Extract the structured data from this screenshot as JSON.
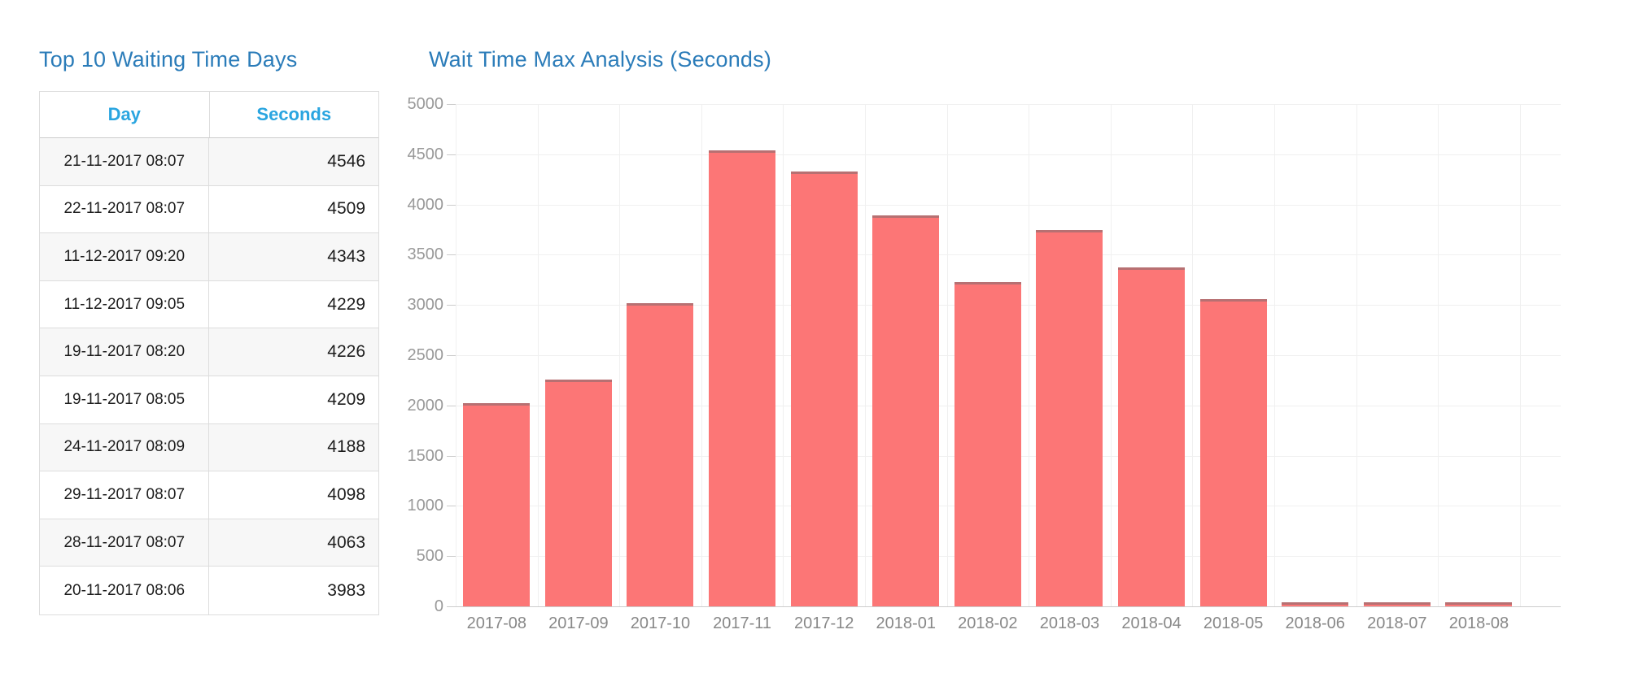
{
  "left_panel": {
    "title": "Top 10 Waiting Time Days",
    "table": {
      "columns": [
        "Day",
        "Seconds"
      ],
      "rows": [
        {
          "day": "21-11-2017 08:07",
          "seconds": "4546"
        },
        {
          "day": "22-11-2017 08:07",
          "seconds": "4509"
        },
        {
          "day": "11-12-2017 09:20",
          "seconds": "4343"
        },
        {
          "day": "11-12-2017 09:05",
          "seconds": "4229"
        },
        {
          "day": "19-11-2017 08:20",
          "seconds": "4226"
        },
        {
          "day": "19-11-2017 08:05",
          "seconds": "4209"
        },
        {
          "day": "24-11-2017 08:09",
          "seconds": "4188"
        },
        {
          "day": "29-11-2017 08:07",
          "seconds": "4098"
        },
        {
          "day": "28-11-2017 08:07",
          "seconds": "4063"
        },
        {
          "day": "20-11-2017 08:06",
          "seconds": "3983"
        }
      ]
    }
  },
  "chart_panel": {
    "title": "Wait Time Max Analysis (Seconds)"
  },
  "chart_data": {
    "type": "bar",
    "title": "Wait Time Max Analysis (Seconds)",
    "categories": [
      "2017-08",
      "2017-09",
      "2017-10",
      "2017-11",
      "2017-12",
      "2018-01",
      "2018-02",
      "2018-03",
      "2018-04",
      "2018-05",
      "2018-06",
      "2018-07",
      "2018-08"
    ],
    "values": [
      2020,
      2260,
      3020,
      4540,
      4330,
      3890,
      3230,
      3750,
      3370,
      3060,
      30,
      30,
      30
    ],
    "xlabel": "",
    "ylabel": "",
    "ylim": [
      0,
      5000
    ],
    "ytick_step": 500,
    "grid": true,
    "legend_position": "none",
    "bar_color": "#fc7676"
  },
  "colors": {
    "title_blue": "#2b7cb9",
    "table_header_blue": "#2aa5e0",
    "bar_fill": "#fc7676",
    "bar_top_edge": "rgba(125,108,112,0.55)",
    "grid_line": "#f0f0f0",
    "axis_line": "#cccccc",
    "y_label_text": "#999999",
    "x_label_text": "#888888",
    "cell_text": "#1c1c1c",
    "row_stripe": "#f7f7f7",
    "table_border": "#dddddd"
  }
}
